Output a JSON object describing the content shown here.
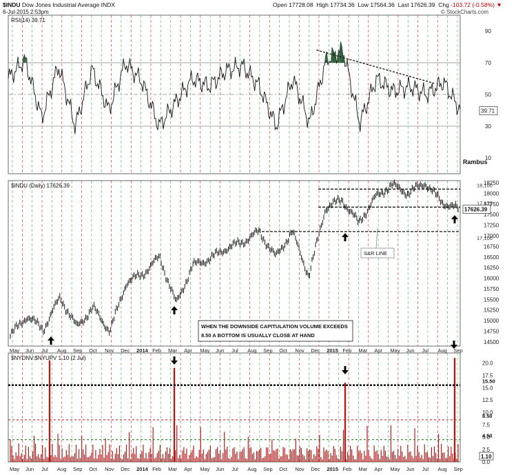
{
  "header": {
    "symbol": "$INDU",
    "name": "Dow Jones Industrial Average",
    "exchange": "INDX",
    "datetime": "6-Jul-2015 2:53pm",
    "open_label": "Open",
    "open": "17728.08",
    "high_label": "High",
    "high": "17734.36",
    "low_label": "Low",
    "low": "17564.36",
    "last_label": "Last",
    "last": "17626.39",
    "chg_label": "Chg",
    "chg": "-103.72 (-0.58%)",
    "watermark": "© StockCharts.com"
  },
  "colors": {
    "green_vline": "#3cb43c",
    "red_vline": "#cc2222",
    "rsi_fill": "#2f5f3a",
    "volume_bar": "#b01c1c",
    "price_line": "#000000"
  },
  "chart_data": [
    {
      "type": "line",
      "panel": "rsi",
      "title": "RSI(14) 39.71",
      "ylim": [
        0,
        100
      ],
      "ticks": [
        10,
        30,
        50,
        70,
        90
      ],
      "reference_lines": [
        30,
        50,
        70
      ],
      "last_value_label": "39.71",
      "annotation": "Rambus",
      "trendline": {
        "from": {
          "x": "2014-12",
          "y": 78
        },
        "to": {
          "x": "2015-07",
          "y": 57
        }
      },
      "series": [
        {
          "x": [
            "2013-04",
            "2013-05",
            "2013-06",
            "2013-07",
            "2013-08",
            "2013-09",
            "2013-10",
            "2013-11",
            "2013-12",
            "2014-01",
            "2014-02",
            "2014-03",
            "2014-04",
            "2014-05",
            "2014-06",
            "2014-07",
            "2014-08",
            "2014-09",
            "2014-10",
            "2014-11",
            "2014-12",
            "2015-01",
            "2015-02",
            "2015-03",
            "2015-04",
            "2015-05",
            "2015-06",
            "2015-07"
          ],
          "values": [
            60,
            72,
            35,
            68,
            30,
            66,
            40,
            70,
            58,
            30,
            45,
            60,
            55,
            65,
            68,
            55,
            30,
            60,
            32,
            72,
            78,
            32,
            60,
            52,
            55,
            50,
            58,
            40
          ]
        }
      ]
    },
    {
      "type": "line",
      "panel": "price",
      "title": "$INDU (Daily) 17626.39",
      "ylim": [
        14400,
        18300
      ],
      "ticks": [
        14500,
        14750,
        15000,
        15250,
        15500,
        15750,
        16000,
        16250,
        16500,
        16750,
        17000,
        17250,
        17500,
        17750,
        18000,
        18250
      ],
      "last_value_label": "17626.39",
      "levels": [
        {
          "value": 18100,
          "label": "18,100"
        },
        {
          "value": 17675,
          "label": "17,675"
        },
        {
          "value": 17100,
          "label": "17,100"
        }
      ],
      "annotations": [
        "S&R LINE",
        "WHEN THE DOWNSIDE CAPITULATION VOLUME EXCEEDS",
        "8.50 A BOTTOM IS USUALLY CLOSE AT HAND"
      ],
      "series": [
        {
          "name": "$INDU",
          "x": [
            "2013-04",
            "2013-05",
            "2013-06",
            "2013-07",
            "2013-08",
            "2013-09",
            "2013-10",
            "2013-11",
            "2013-12",
            "2014-01",
            "2014-02",
            "2014-03",
            "2014-04",
            "2014-05",
            "2014-06",
            "2014-07",
            "2014-08",
            "2014-09",
            "2014-10",
            "2014-11",
            "2014-12",
            "2015-01",
            "2015-02",
            "2015-03",
            "2015-04",
            "2015-05",
            "2015-06",
            "2015-07"
          ],
          "values": [
            14650,
            15100,
            14800,
            15550,
            14850,
            15300,
            14750,
            15900,
            16100,
            16500,
            15400,
            16300,
            16450,
            16700,
            16850,
            17100,
            16500,
            17100,
            16050,
            17650,
            17850,
            17300,
            17900,
            18200,
            18000,
            18250,
            17800,
            17626
          ]
        }
      ]
    },
    {
      "type": "bar",
      "panel": "volume_ratio",
      "title": "$NYDNV:$NYUPV 1.10 (2 Jul)",
      "ylim": [
        0,
        22
      ],
      "ticks": [
        0.0,
        2.5,
        5.0,
        7.5,
        10.0,
        12.5,
        15.0,
        17.5,
        20.0
      ],
      "last_value_label": "1.10",
      "levels": [
        {
          "value": 15.5,
          "label": "15.50"
        },
        {
          "value": 8.5,
          "label": "8.50"
        },
        {
          "value": 4.5,
          "label": "4.50"
        }
      ],
      "spikes": [
        {
          "x": "2013-06",
          "value": 20.5
        },
        {
          "x": "2014-02",
          "value": 19.0
        },
        {
          "x": "2014-12",
          "value": 16.0
        },
        {
          "x": "2015-07",
          "value": 21.0
        }
      ],
      "x_ticks": [
        "May",
        "Jun",
        "Jul",
        "Aug",
        "Sep",
        "Oct",
        "Nov",
        "Dec",
        "2014",
        "Feb",
        "Mar",
        "Apr",
        "May",
        "Jun",
        "Jul",
        "Aug",
        "Sep",
        "Oct",
        "Nov",
        "Dec",
        "2015",
        "Feb",
        "Mar",
        "Apr",
        "May",
        "Jun",
        "Jul",
        "Aug",
        "Sep"
      ]
    }
  ]
}
